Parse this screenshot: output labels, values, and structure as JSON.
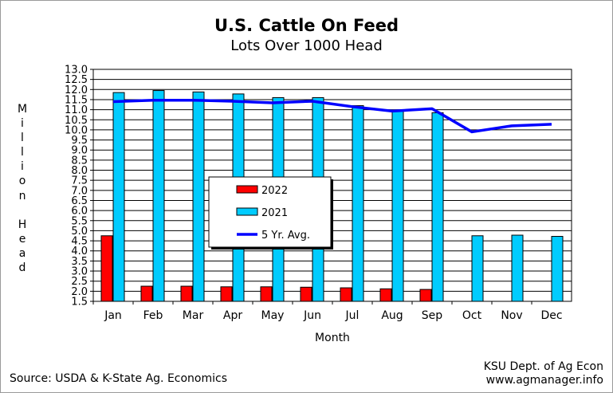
{
  "chart_data": {
    "type": "bar",
    "title": "U.S. Cattle On Feed",
    "subtitle": "Lots Over 1000 Head",
    "xlabel": "Month",
    "ylabel": "Million Head",
    "ylim": [
      1.5,
      13.0
    ],
    "ystep": 0.5,
    "categories": [
      "Jan",
      "Feb",
      "Mar",
      "Apr",
      "May",
      "Jun",
      "Jul",
      "Aug",
      "Sep",
      "Oct",
      "Nov",
      "Dec"
    ],
    "series": [
      {
        "name": "2022",
        "type": "bar",
        "color": "#ff0000",
        "values": [
          4.75,
          2.25,
          2.25,
          2.22,
          2.22,
          2.2,
          2.17,
          2.12,
          2.09,
          null,
          null,
          null
        ]
      },
      {
        "name": "2021",
        "type": "bar",
        "color": "#00ccff",
        "values": [
          11.85,
          11.95,
          11.88,
          11.78,
          11.6,
          11.6,
          11.2,
          10.95,
          10.85,
          4.75,
          4.78,
          4.72
        ]
      },
      {
        "name": "5 Yr. Avg.",
        "type": "line",
        "color": "#0000ff",
        "values": [
          11.4,
          11.47,
          11.47,
          11.42,
          11.34,
          11.42,
          11.15,
          10.93,
          11.05,
          9.9,
          10.2,
          10.28
        ]
      }
    ],
    "grid": true,
    "legend_position": "center-left"
  },
  "footer": {
    "source": "Source:  USDA & K-State Ag. Economics",
    "credit_line1": "KSU Dept. of Ag Econ",
    "credit_line2": "www.agmanager.info"
  }
}
